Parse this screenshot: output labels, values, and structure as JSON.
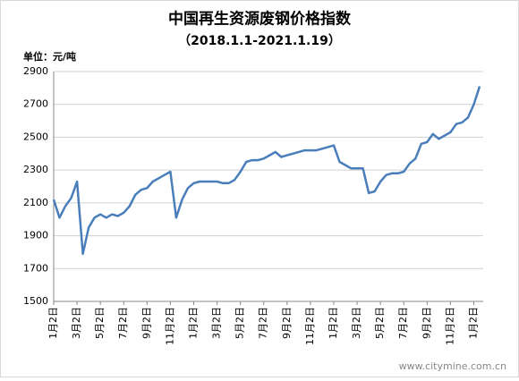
{
  "chart_data": {
    "type": "line",
    "title": "中国再生资源废钢价格指数",
    "subtitle": "（2018.1.1-2021.1.19）",
    "y_label": "单位：元/吨",
    "watermark": "www.citymine.com.cn",
    "categories": [
      "1月2日",
      null,
      null,
      null,
      "3月2日",
      null,
      null,
      null,
      "5月2日",
      null,
      null,
      null,
      "7月2日",
      null,
      null,
      null,
      "9月2日",
      null,
      null,
      null,
      "11月2日",
      null,
      null,
      null,
      "1月2日",
      null,
      null,
      null,
      "3月2日",
      null,
      null,
      null,
      "5月2日",
      null,
      null,
      null,
      "7月2日",
      null,
      null,
      null,
      "9月2日",
      null,
      null,
      null,
      "11月2日",
      null,
      null,
      null,
      "1月2日",
      null,
      null,
      null,
      "3月2日",
      null,
      null,
      null,
      "5月2日",
      null,
      null,
      null,
      "7月2日",
      null,
      null,
      null,
      "9月2日",
      null,
      null,
      null,
      "11月2日",
      null,
      null,
      null,
      "1月2日",
      null
    ],
    "series": [
      {
        "name": "废钢价格指数",
        "color": "#4a7ebb",
        "values": [
          2120,
          2010,
          2080,
          2130,
          2230,
          1790,
          1950,
          2010,
          2030,
          2010,
          2030,
          2020,
          2040,
          2080,
          2150,
          2180,
          2190,
          2230,
          2250,
          2270,
          2290,
          2010,
          2120,
          2190,
          2220,
          2230,
          2230,
          2230,
          2230,
          2220,
          2220,
          2240,
          2290,
          2350,
          2360,
          2360,
          2370,
          2390,
          2410,
          2380,
          2390,
          2400,
          2410,
          2420,
          2420,
          2420,
          2430,
          2440,
          2450,
          2350,
          2330,
          2310,
          2310,
          2310,
          2160,
          2170,
          2230,
          2270,
          2280,
          2280,
          2290,
          2340,
          2370,
          2460,
          2470,
          2520,
          2490,
          2510,
          2530,
          2580,
          2590,
          2620,
          2700,
          2810
        ]
      }
    ],
    "ylim": [
      1500,
      2900
    ],
    "yticks": [
      1500,
      1700,
      1900,
      2100,
      2300,
      2500,
      2700,
      2900
    ],
    "grid": true
  }
}
